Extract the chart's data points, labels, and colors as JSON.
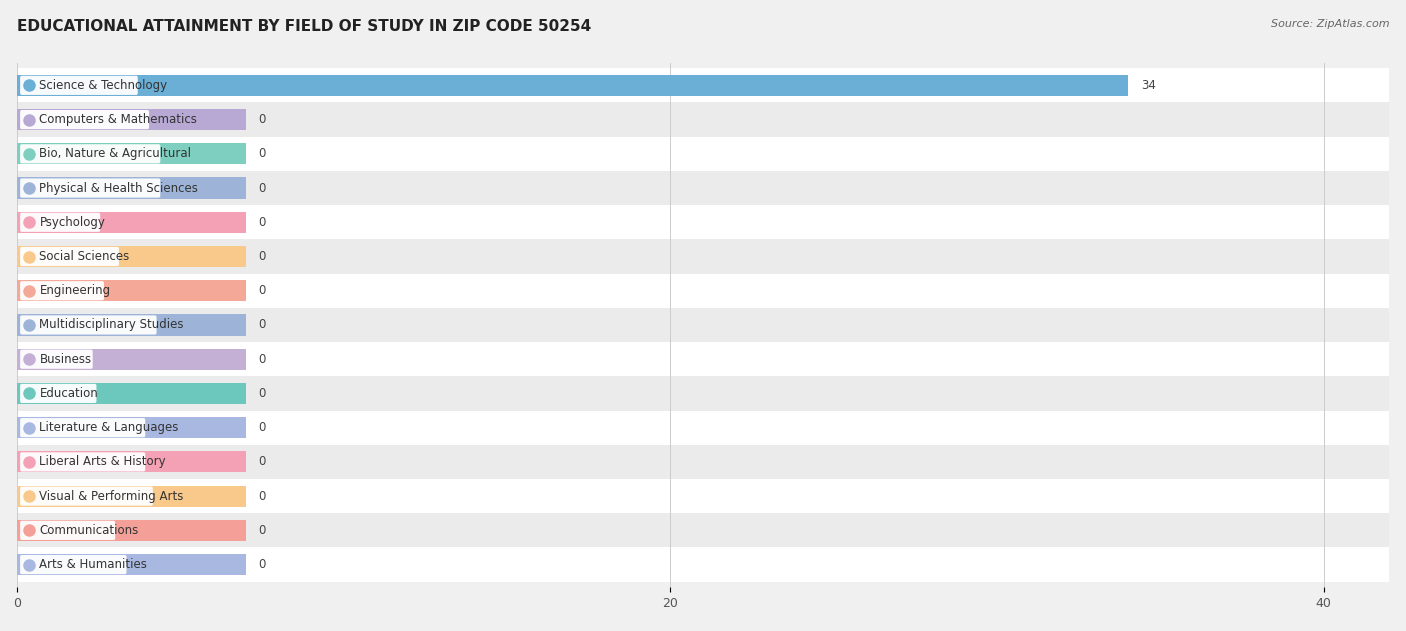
{
  "title": "EDUCATIONAL ATTAINMENT BY FIELD OF STUDY IN ZIP CODE 50254",
  "source": "Source: ZipAtlas.com",
  "categories": [
    "Science & Technology",
    "Computers & Mathematics",
    "Bio, Nature & Agricultural",
    "Physical & Health Sciences",
    "Psychology",
    "Social Sciences",
    "Engineering",
    "Multidisciplinary Studies",
    "Business",
    "Education",
    "Literature & Languages",
    "Liberal Arts & History",
    "Visual & Performing Arts",
    "Communications",
    "Arts & Humanities"
  ],
  "values": [
    34,
    0,
    0,
    0,
    0,
    0,
    0,
    0,
    0,
    0,
    0,
    0,
    0,
    0,
    0
  ],
  "bar_colors": [
    "#6baed6",
    "#b8a9d4",
    "#7ecfc0",
    "#9db4d8",
    "#f4a0b5",
    "#f8c98a",
    "#f4a898",
    "#9db4d8",
    "#c5b0d5",
    "#6cc8bc",
    "#a8b8e0",
    "#f4a0b5",
    "#f8c98a",
    "#f4a098",
    "#a8b8e0"
  ],
  "xlim": [
    0,
    42
  ],
  "xticks": [
    0,
    20,
    40
  ],
  "background_color": "#f0f0f0",
  "bar_height": 0.62,
  "min_bar_width": 7.0,
  "title_fontsize": 11,
  "label_fontsize": 8.5,
  "value_fontsize": 8.5
}
